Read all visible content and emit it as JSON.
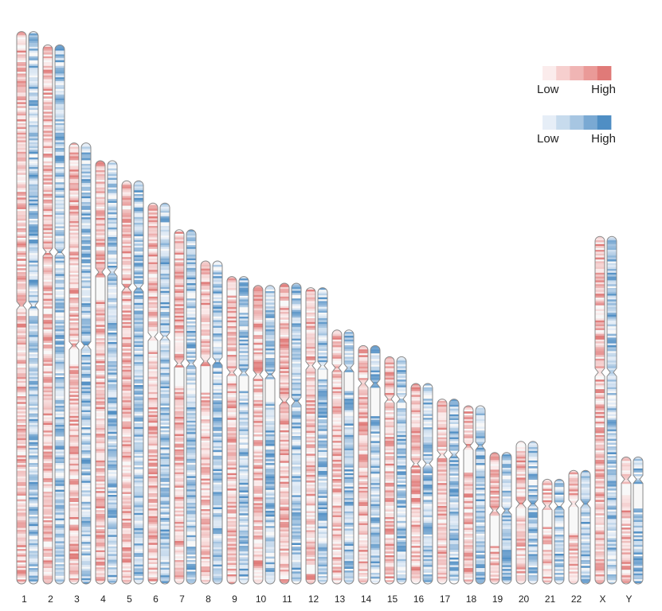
{
  "chart_data": {
    "type": "heatmap",
    "title": "",
    "xlabel": "",
    "ylabel": "",
    "tracks": [
      {
        "name": "",
        "color_low": "#fbecec",
        "color_high": "#e07a78"
      },
      {
        "name": "",
        "color_low": "#e6eef7",
        "color_high": "#4f8ec4"
      }
    ],
    "chromosomes": [
      {
        "label": "1",
        "length": 248,
        "centromere": 123
      },
      {
        "label": "2",
        "length": 242,
        "centromere": 93
      },
      {
        "label": "3",
        "length": 198,
        "centromere": 91
      },
      {
        "label": "4",
        "length": 190,
        "centromere": 50
      },
      {
        "label": "5",
        "length": 181,
        "centromere": 48
      },
      {
        "label": "6",
        "length": 171,
        "centromere": 60
      },
      {
        "label": "7",
        "length": 159,
        "centromere": 60
      },
      {
        "label": "8",
        "length": 145,
        "centromere": 45
      },
      {
        "label": "9",
        "length": 138,
        "centromere": 43
      },
      {
        "label": "10",
        "length": 134,
        "centromere": 40
      },
      {
        "label": "11",
        "length": 135,
        "centromere": 53
      },
      {
        "label": "12",
        "length": 133,
        "centromere": 35
      },
      {
        "label": "13",
        "length": 114,
        "centromere": 17
      },
      {
        "label": "14",
        "length": 107,
        "centromere": 17
      },
      {
        "label": "15",
        "length": 102,
        "centromere": 19
      },
      {
        "label": "16",
        "length": 90,
        "centromere": 36
      },
      {
        "label": "17",
        "length": 83,
        "centromere": 25
      },
      {
        "label": "18",
        "length": 80,
        "centromere": 18
      },
      {
        "label": "19",
        "length": 59,
        "centromere": 26
      },
      {
        "label": "20",
        "length": 64,
        "centromere": 28
      },
      {
        "label": "21",
        "length": 47,
        "centromere": 12
      },
      {
        "label": "22",
        "length": 51,
        "centromere": 15
      },
      {
        "label": "X",
        "length": 156,
        "centromere": 61
      },
      {
        "label": "Y",
        "length": 57,
        "centromere": 10
      }
    ],
    "legend": {
      "placement": "top-right",
      "items": [
        {
          "low_label": "Low",
          "high_label": "High",
          "colors": [
            "#fbecec",
            "#f6cfce",
            "#f0b5b4",
            "#ea9a98",
            "#e07a78"
          ]
        },
        {
          "low_label": "Low",
          "high_label": "High",
          "colors": [
            "#e6eef7",
            "#c7dbed",
            "#a7c6e2",
            "#7aa9d3",
            "#4f8ec4"
          ]
        }
      ]
    }
  }
}
